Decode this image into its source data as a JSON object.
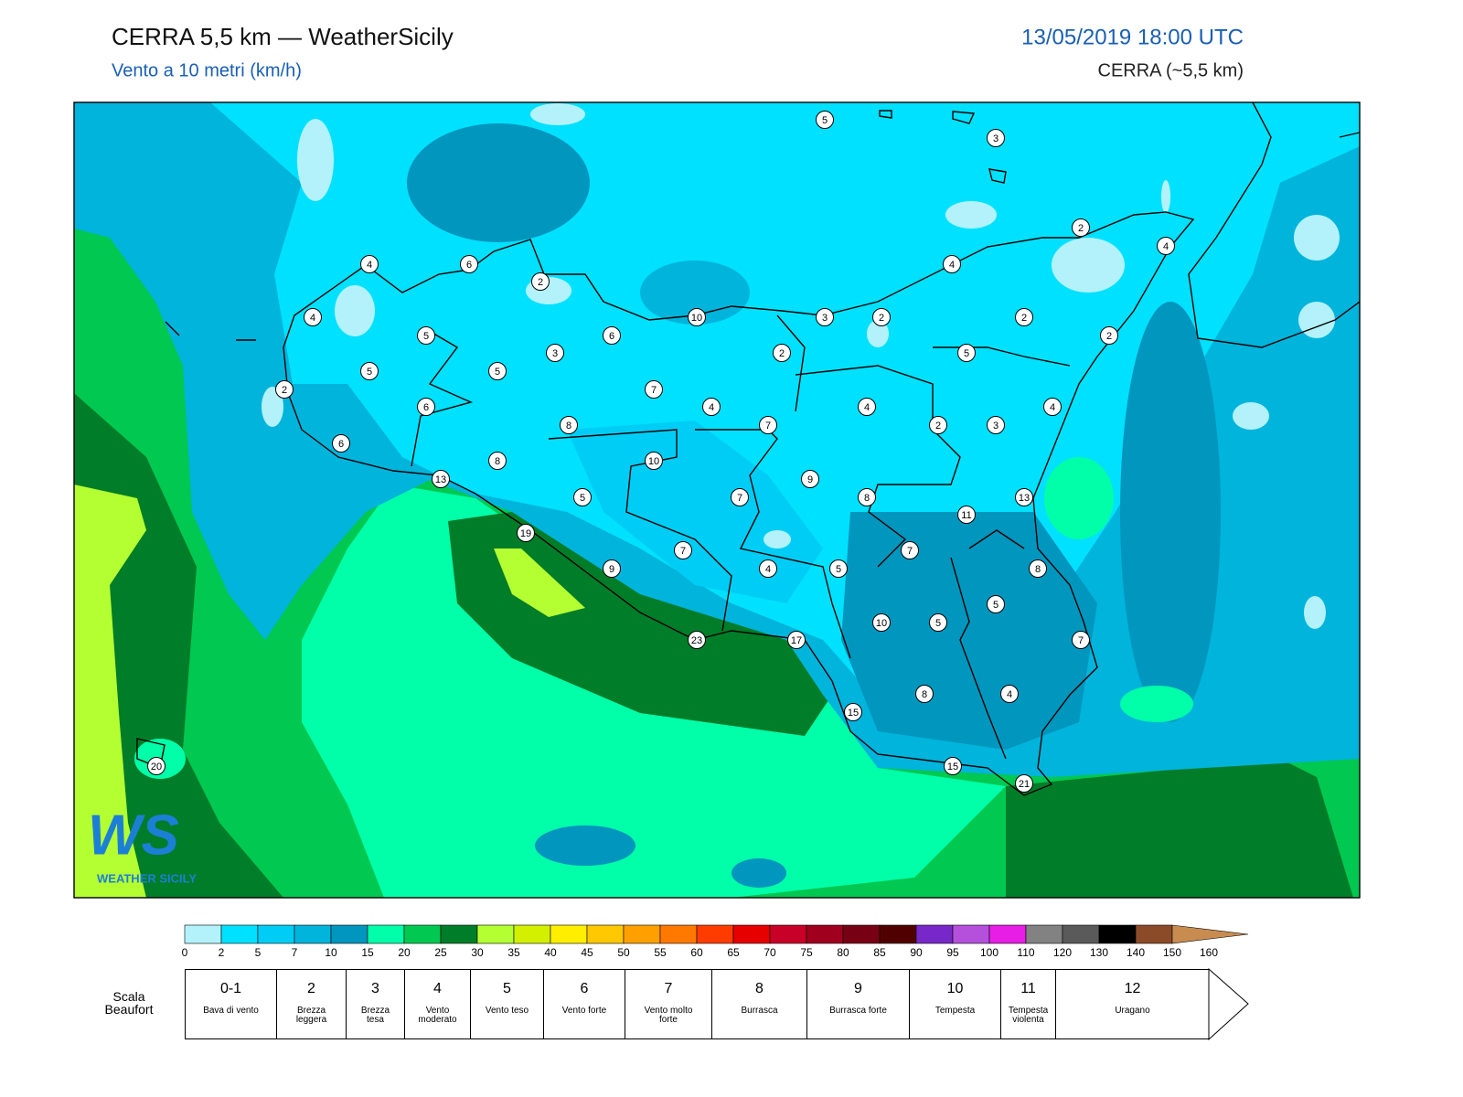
{
  "header": {
    "title": "CERRA 5,5 km — WeatherSicily",
    "subtitle": "Vento a 10 metri (km/h)",
    "datetime": "13/05/2019 18:00 UTC",
    "model": "CERRA (~5,5 km)"
  },
  "stations": [
    5,
    3,
    2,
    4,
    4,
    6,
    2,
    4,
    10,
    4,
    3,
    2,
    2,
    2,
    5,
    6,
    3,
    2,
    5,
    5,
    5,
    2,
    7,
    6,
    4,
    4,
    4,
    8,
    7,
    2,
    3,
    6,
    8,
    10,
    13,
    9,
    5,
    7,
    8,
    13,
    11,
    19,
    7,
    7,
    9,
    4,
    5,
    8,
    5,
    10,
    5,
    23,
    17,
    7,
    8,
    4,
    15,
    15,
    21,
    20
  ],
  "logo": {
    "mark": "WS",
    "name": "WEATHER SICILY"
  },
  "legend": {
    "colorbar": {
      "ticks": [
        0,
        2,
        5,
        7,
        10,
        15,
        20,
        25,
        30,
        35,
        40,
        45,
        50,
        55,
        60,
        65,
        70,
        75,
        80,
        85,
        90,
        95,
        100,
        110,
        120,
        130,
        140,
        150,
        160
      ],
      "colors": [
        "#b3f2fb",
        "#00e1ff",
        "#00cdf5",
        "#00b4dc",
        "#0096be",
        "#00ffa8",
        "#00c850",
        "#007d28",
        "#b4ff32",
        "#d2f000",
        "#ffee00",
        "#ffc800",
        "#ffa000",
        "#ff7800",
        "#ff3c00",
        "#e60000",
        "#c80028",
        "#a0001e",
        "#780014",
        "#500000",
        "#7828c8",
        "#b450dc",
        "#e61ee6",
        "#828282",
        "#5a5a5a",
        "#000000",
        "#8c4b28",
        "#c88c50"
      ]
    },
    "beaufort": {
      "title": "Scala Beaufort",
      "levels": [
        {
          "force": "0-1",
          "name": "Bava di vento"
        },
        {
          "force": "2",
          "name": "Brezza leggera"
        },
        {
          "force": "3",
          "name": "Brezza tesa"
        },
        {
          "force": "4",
          "name": "Vento moderato"
        },
        {
          "force": "5",
          "name": "Vento teso"
        },
        {
          "force": "6",
          "name": "Vento forte"
        },
        {
          "force": "7",
          "name": "Vento molto forte"
        },
        {
          "force": "8",
          "name": "Burrasca"
        },
        {
          "force": "9",
          "name": "Burrasca forte"
        },
        {
          "force": "10",
          "name": "Tempesta"
        },
        {
          "force": "11",
          "name": "Tempesta violenta"
        },
        {
          "force": "12",
          "name": "Uragano"
        }
      ]
    }
  }
}
